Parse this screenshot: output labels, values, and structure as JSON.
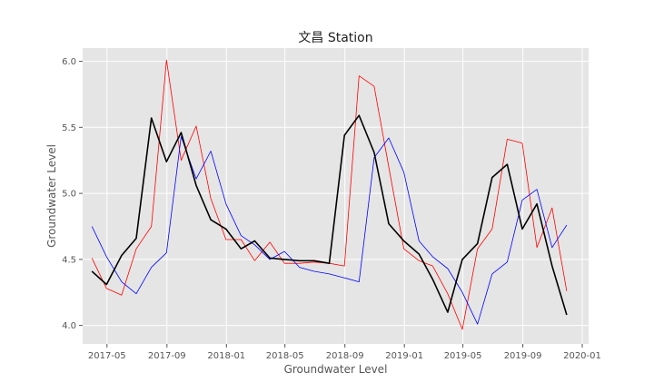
{
  "chart_data": {
    "type": "line",
    "title": "文昌 Station",
    "xlabel": "Groundwater Level",
    "ylabel": "Groundwater Level",
    "ylim": [
      38.6,
      61.0
    ],
    "xlim": [
      "2017-03-12",
      "2020-01-14"
    ],
    "grid": true,
    "background": "#e5e5e5",
    "x_ticks": [
      {
        "date": "2017-05-01",
        "label": "2017-05"
      },
      {
        "date": "2017-09-01",
        "label": "2017-09"
      },
      {
        "date": "2018-01-01",
        "label": "2018-01"
      },
      {
        "date": "2018-05-01",
        "label": "2018-05"
      },
      {
        "date": "2018-09-01",
        "label": "2018-09"
      },
      {
        "date": "2019-01-01",
        "label": "2019-01"
      },
      {
        "date": "2019-05-01",
        "label": "2019-05"
      },
      {
        "date": "2019-09-01",
        "label": "2019-09"
      },
      {
        "date": "2020-01-01",
        "label": "2020-01"
      }
    ],
    "y_ticks": [
      {
        "value": 40,
        "label": "4.0"
      },
      {
        "value": 45,
        "label": "4.5"
      },
      {
        "value": 50,
        "label": "5.0"
      },
      {
        "value": 55,
        "label": "5.5"
      },
      {
        "value": 60,
        "label": "6.0"
      }
    ],
    "x": [
      "2017-03-31",
      "2017-04-30",
      "2017-05-31",
      "2017-06-30",
      "2017-07-31",
      "2017-08-31",
      "2017-09-30",
      "2017-10-31",
      "2017-11-30",
      "2017-12-31",
      "2018-01-31",
      "2018-02-28",
      "2018-03-31",
      "2018-04-30",
      "2018-05-31",
      "2018-06-30",
      "2018-07-31",
      "2018-08-31",
      "2018-09-30",
      "2018-10-31",
      "2018-11-30",
      "2018-12-31",
      "2019-01-31",
      "2019-02-28",
      "2019-03-31",
      "2019-04-30",
      "2019-05-31",
      "2019-06-30",
      "2019-07-31",
      "2019-08-31",
      "2019-09-30",
      "2019-10-31",
      "2019-11-30",
      "2019-12-31"
    ],
    "series": [
      {
        "color": "#ff0000",
        "stroke_width": 0.8,
        "values": [
          45.1,
          42.8,
          42.3,
          45.8,
          47.5,
          60.1,
          52.5,
          55.1,
          49.6,
          46.5,
          46.5,
          44.9,
          46.3,
          44.7,
          44.7,
          44.8,
          44.7,
          44.5,
          58.9,
          58.1,
          52.0,
          45.8,
          44.9,
          44.5,
          42.4,
          39.7,
          45.8,
          47.3,
          54.1,
          53.8,
          45.9,
          48.9,
          42.6,
          null
        ]
      },
      {
        "color": "#0000ff",
        "stroke_width": 0.8,
        "values": [
          47.5,
          45.2,
          43.3,
          42.4,
          44.4,
          45.5,
          54.3,
          51.1,
          53.2,
          49.2,
          46.8,
          46.1,
          45.0,
          45.6,
          44.4,
          44.1,
          43.9,
          43.6,
          43.3,
          52.7,
          54.2,
          51.6,
          46.4,
          45.2,
          44.3,
          42.5,
          40.1,
          43.9,
          44.8,
          49.5,
          50.3,
          45.9,
          47.6,
          null
        ]
      },
      {
        "color": "#000000",
        "stroke_width": 1.6,
        "values": [
          44.1,
          43.1,
          45.3,
          46.6,
          55.7,
          52.4,
          54.6,
          50.6,
          48.0,
          47.3,
          45.8,
          46.4,
          45.1,
          45.0,
          44.9,
          44.9,
          44.7,
          54.4,
          55.9,
          53.1,
          47.7,
          46.4,
          45.4,
          43.5,
          41.0,
          45.0,
          46.2,
          51.2,
          52.2,
          47.3,
          49.2,
          44.5,
          40.8,
          null
        ]
      }
    ]
  }
}
